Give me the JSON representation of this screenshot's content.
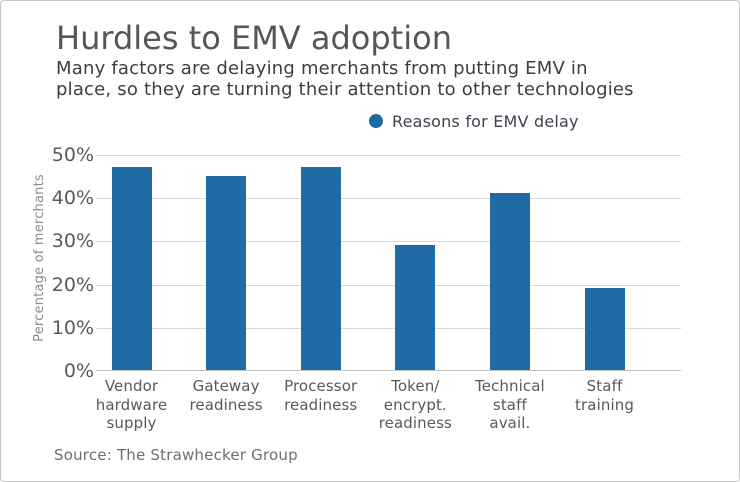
{
  "header": {
    "title": "Hurdles to EMV adoption",
    "subtitle_line1": "Many factors are delaying merchants from putting EMV in",
    "subtitle_line2": "place, so they are turning their attention to other technologies"
  },
  "legend": {
    "label": "Reasons for EMV delay",
    "marker_color": "#1f6ca5"
  },
  "source": {
    "text": "Source: The Strawhecker Group"
  },
  "axis": {
    "yticks_top_to_bottom": [
      "50%",
      "40%",
      "30%",
      "20%",
      "10%",
      "0%"
    ],
    "category_lines": [
      [
        "Vendor",
        "hardware",
        "supply"
      ],
      [
        "Gateway",
        "readiness"
      ],
      [
        "Processor",
        "readiness"
      ],
      [
        "Token/",
        "encrypt.",
        "readiness"
      ],
      [
        "Technical",
        "staff",
        "avail."
      ],
      [
        "Staff",
        "training"
      ]
    ]
  },
  "chart_data": {
    "type": "bar",
    "title": "Hurdles to EMV adoption",
    "subtitle": "Many factors are delaying merchants from putting EMV in place, so they are turning their attention to other technologies",
    "legend_entries": [
      "Reasons for EMV delay"
    ],
    "legend_position": "top",
    "categories": [
      "Vendor hardware supply",
      "Gateway readiness",
      "Processor readiness",
      "Token/ encrypt. readiness",
      "Technical staff avail.",
      "Staff training"
    ],
    "values": [
      47,
      45,
      47,
      29,
      41,
      19
    ],
    "unit": "percent",
    "xlabel": "",
    "ylabel": "Percentage of merchants",
    "ylim": [
      0,
      50
    ],
    "ytick_step": 10,
    "grid": true,
    "bar_color": "#1f6ca5",
    "gridline_color": "#d9d9d9",
    "source": "Source: The Strawhecker Group"
  }
}
